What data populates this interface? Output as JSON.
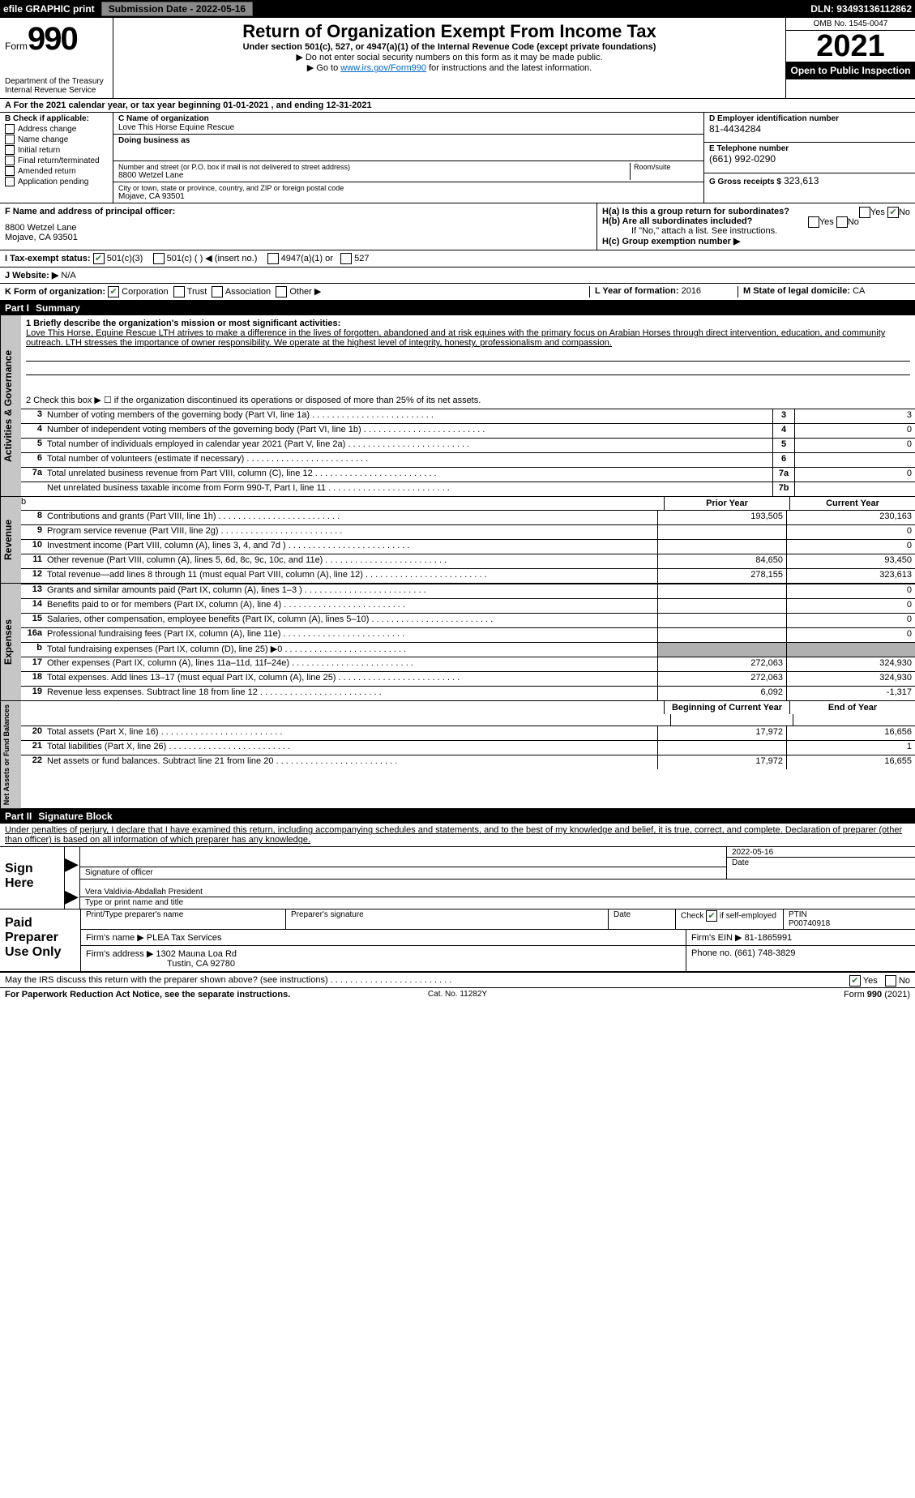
{
  "topbar": {
    "efile": "efile GRAPHIC print",
    "submission": "Submission Date - 2022-05-16",
    "dln": "DLN: 93493136112862"
  },
  "header": {
    "form_word": "Form",
    "form_num": "990",
    "title": "Return of Organization Exempt From Income Tax",
    "subtitle": "Under section 501(c), 527, or 4947(a)(1) of the Internal Revenue Code (except private foundations)",
    "ssn_note": "▶ Do not enter social security numbers on this form as it may be made public.",
    "goto_pre": "▶ Go to ",
    "goto_link": "www.irs.gov/Form990",
    "goto_post": " for instructions and the latest information.",
    "dept": "Department of the Treasury",
    "irs": "Internal Revenue Service",
    "omb": "OMB No. 1545-0047",
    "year": "2021",
    "open": "Open to Public Inspection"
  },
  "lineA": "A For the 2021 calendar year, or tax year beginning 01-01-2021     , and ending 12-31-2021",
  "B": {
    "label": "B Check if applicable:",
    "items": [
      "Address change",
      "Name change",
      "Initial return",
      "Final return/terminated",
      "Amended return",
      "Application pending"
    ]
  },
  "C": {
    "name_label": "C Name of organization",
    "name": "Love This Horse Equine Rescue",
    "dba_label": "Doing business as",
    "street_label": "Number and street (or P.O. box if mail is not delivered to street address)",
    "room_label": "Room/suite",
    "street": "8800 Wetzel Lane",
    "city_label": "City or town, state or province, country, and ZIP or foreign postal code",
    "city": "Mojave, CA  93501"
  },
  "D": {
    "label": "D Employer identification number",
    "value": "81-4434284"
  },
  "E": {
    "label": "E Telephone number",
    "value": "(661) 992-0290"
  },
  "G": {
    "label": "G Gross receipts $",
    "value": "323,613"
  },
  "F": {
    "label": "F  Name and address of principal officer:",
    "line1": "8800 Wetzel Lane",
    "line2": "Mojave, CA  93501"
  },
  "H": {
    "a": "H(a)  Is this a group return for subordinates?",
    "b": "H(b)  Are all subordinates included?",
    "b_note": "If \"No,\" attach a list. See instructions.",
    "c": "H(c)  Group exemption number ▶",
    "yes": "Yes",
    "no": "No"
  },
  "I": {
    "label": "I     Tax-exempt status:",
    "o1": "501(c)(3)",
    "o2": "501(c) (  ) ◀ (insert no.)",
    "o3": "4947(a)(1) or",
    "o4": "527"
  },
  "J": {
    "label": "J     Website: ▶",
    "value": "N/A"
  },
  "K": {
    "label": "K Form of organization:",
    "o1": "Corporation",
    "o2": "Trust",
    "o3": "Association",
    "o4": "Other ▶"
  },
  "L": {
    "label": "L Year of formation:",
    "value": "2016"
  },
  "M": {
    "label": "M State of legal domicile:",
    "value": "CA"
  },
  "partI": {
    "label": "Part I",
    "title": "Summary"
  },
  "summary": {
    "l1_label": "1  Briefly describe the organization's mission or most significant activities:",
    "l1_text": "Love This Horse, Equine Rescue LTH atrives to make a difference in the lives of forgotten, abandoned and at risk equines with the primary focus on Arabian Horses through direct intervention, education, and community outreach. LTH stresses the importance of owner responsibility. We operate at the highest level of integrity, honesty, professionalism and compassion.",
    "l2": "2   Check this box ▶ ☐  if the organization discontinued its operations or disposed of more than 25% of its net assets.",
    "rows_ag": [
      {
        "n": "3",
        "d": "Number of voting members of the governing body (Part VI, line 1a)",
        "rn": "3",
        "v": "3"
      },
      {
        "n": "4",
        "d": "Number of independent voting members of the governing body (Part VI, line 1b)",
        "rn": "4",
        "v": "0"
      },
      {
        "n": "5",
        "d": "Total number of individuals employed in calendar year 2021 (Part V, line 2a)",
        "rn": "5",
        "v": "0"
      },
      {
        "n": "6",
        "d": "Total number of volunteers (estimate if necessary)",
        "rn": "6",
        "v": ""
      },
      {
        "n": "7a",
        "d": "Total unrelated business revenue from Part VIII, column (C), line 12",
        "rn": "7a",
        "v": "0"
      },
      {
        "n": "",
        "d": "Net unrelated business taxable income from Form 990-T, Part I, line 11",
        "rn": "7b",
        "v": ""
      }
    ],
    "head_b": "b",
    "prior": "Prior Year",
    "current": "Current Year",
    "rows_rev": [
      {
        "n": "8",
        "d": "Contributions and grants (Part VIII, line 1h)",
        "p": "193,505",
        "c": "230,163"
      },
      {
        "n": "9",
        "d": "Program service revenue (Part VIII, line 2g)",
        "p": "",
        "c": "0"
      },
      {
        "n": "10",
        "d": "Investment income (Part VIII, column (A), lines 3, 4, and 7d )",
        "p": "",
        "c": "0"
      },
      {
        "n": "11",
        "d": "Other revenue (Part VIII, column (A), lines 5, 6d, 8c, 9c, 10c, and 11e)",
        "p": "84,650",
        "c": "93,450"
      },
      {
        "n": "12",
        "d": "Total revenue—add lines 8 through 11 (must equal Part VIII, column (A), line 12)",
        "p": "278,155",
        "c": "323,613"
      }
    ],
    "rows_exp": [
      {
        "n": "13",
        "d": "Grants and similar amounts paid (Part IX, column (A), lines 1–3 )",
        "p": "",
        "c": "0"
      },
      {
        "n": "14",
        "d": "Benefits paid to or for members (Part IX, column (A), line 4)",
        "p": "",
        "c": "0"
      },
      {
        "n": "15",
        "d": "Salaries, other compensation, employee benefits (Part IX, column (A), lines 5–10)",
        "p": "",
        "c": "0"
      },
      {
        "n": "16a",
        "d": "Professional fundraising fees (Part IX, column (A), line 11e)",
        "p": "",
        "c": "0"
      },
      {
        "n": "b",
        "d": "Total fundraising expenses (Part IX, column (D), line 25) ▶0",
        "p": "SHADE",
        "c": "SHADE"
      },
      {
        "n": "17",
        "d": "Other expenses (Part IX, column (A), lines 11a–11d, 11f–24e)",
        "p": "272,063",
        "c": "324,930"
      },
      {
        "n": "18",
        "d": "Total expenses. Add lines 13–17 (must equal Part IX, column (A), line 25)",
        "p": "272,063",
        "c": "324,930"
      },
      {
        "n": "19",
        "d": "Revenue less expenses. Subtract line 18 from line 12",
        "p": "6,092",
        "c": "-1,317"
      }
    ],
    "na_begin": "Beginning of Current Year",
    "na_end": "End of Year",
    "rows_na": [
      {
        "n": "20",
        "d": "Total assets (Part X, line 16)",
        "p": "17,972",
        "c": "16,656"
      },
      {
        "n": "21",
        "d": "Total liabilities (Part X, line 26)",
        "p": "",
        "c": "1"
      },
      {
        "n": "22",
        "d": "Net assets or fund balances. Subtract line 21 from line 20",
        "p": "17,972",
        "c": "16,655"
      }
    ]
  },
  "vlabels": {
    "ag": "Activities & Governance",
    "rev": "Revenue",
    "exp": "Expenses",
    "na": "Net Assets or Fund Balances"
  },
  "partII": {
    "label": "Part II",
    "title": "Signature Block"
  },
  "penalties": "Under penalties of perjury, I declare that I have examined this return, including accompanying schedules and statements, and to the best of my knowledge and belief, it is true, correct, and complete. Declaration of preparer (other than officer) is based on all information of which preparer has any knowledge.",
  "sign": {
    "here": "Sign Here",
    "sig_of": "Signature of officer",
    "date": "Date",
    "date_val": "2022-05-16",
    "name": "Vera Valdivia-Abdallah  President",
    "name_lbl": "Type or print name and title"
  },
  "paid": {
    "label": "Paid Preparer Use Only",
    "h1": "Print/Type preparer's name",
    "h2": "Preparer's signature",
    "h3": "Date",
    "h4a": "Check",
    "h4b": "if self-employed",
    "h5": "PTIN",
    "ptin": "P00740918",
    "firm_name_lbl": "Firm's name      ▶",
    "firm_name": "PLEA Tax Services",
    "firm_ein_lbl": "Firm's EIN ▶",
    "firm_ein": "81-1865991",
    "firm_addr_lbl": "Firm's address ▶",
    "firm_addr1": "1302 Mauna Loa Rd",
    "firm_addr2": "Tustin, CA  92780",
    "phone_lbl": "Phone no.",
    "phone": "(661) 748-3829"
  },
  "discuss": {
    "q": "May the IRS discuss this return with the preparer shown above? (see instructions)",
    "yes": "Yes",
    "no": "No"
  },
  "footer": {
    "l": "For Paperwork Reduction Act Notice, see the separate instructions.",
    "m": "Cat. No. 11282Y",
    "r": "Form 990 (2021)"
  }
}
